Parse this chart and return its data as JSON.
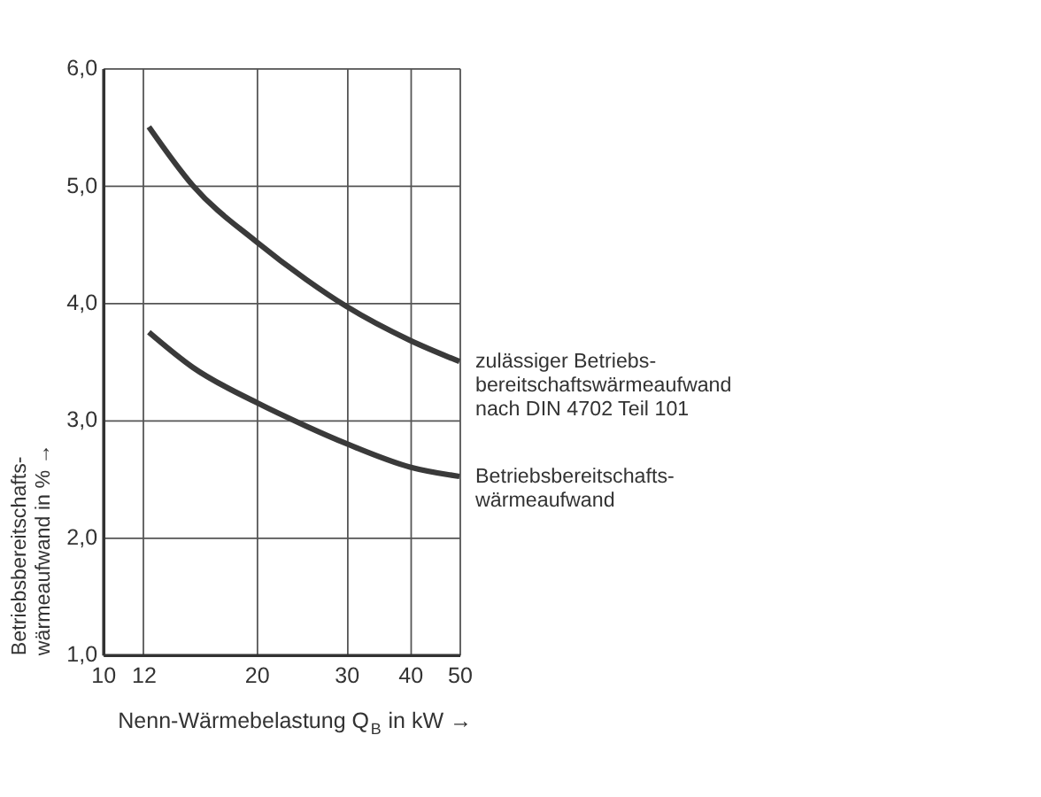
{
  "chart_data": {
    "type": "line",
    "xlabel": "Nenn-Wärmebelastung Q$_{B}$ in kW  →",
    "ylabel": "Betriebsbereitschafts-\nwärmeaufwand in %  →",
    "log": "x",
    "grid": true,
    "xlim": [
      10,
      50
    ],
    "xticks": [
      10,
      12,
      20,
      30,
      40,
      50
    ],
    "ylim": [
      1,
      6
    ],
    "yticks": [
      {
        "value": 1,
        "label": "1,0"
      },
      {
        "value": 2,
        "label": "2,0"
      },
      {
        "value": 3,
        "label": "3,0"
      },
      {
        "value": 4,
        "label": "4,0"
      },
      {
        "value": 5,
        "label": "5,0"
      },
      {
        "value": 6,
        "label": "6,0"
      }
    ],
    "series": [
      {
        "name": "zulässiger Betriebs-\nbereitschaftswärmeaufwand\nnach DIN 4702 Teil 101",
        "color": "#3a3a3a",
        "x": [
          12.3,
          15,
          20,
          25,
          30,
          40,
          50
        ],
        "values": [
          5.5,
          5.0,
          4.52,
          4.2,
          3.97,
          3.68,
          3.5
        ]
      },
      {
        "name": "Betriebsbereitschafts-\nwärmeaufwand",
        "color": "#3a3a3a",
        "x": [
          12.3,
          15,
          20,
          25,
          30,
          40,
          50
        ],
        "values": [
          3.75,
          3.45,
          3.15,
          2.95,
          2.8,
          2.6,
          2.52
        ]
      }
    ]
  }
}
